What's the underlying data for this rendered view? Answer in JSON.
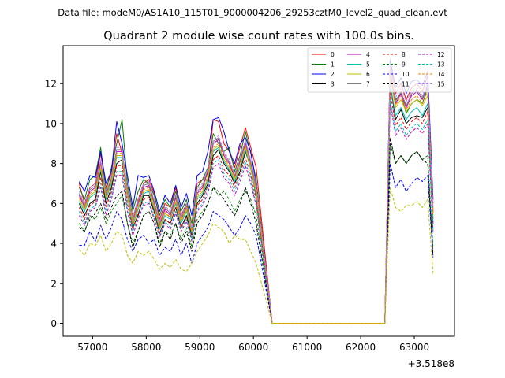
{
  "suptitle": "Data file: modeM0/AS1A10_115T01_9000004206_29253cztM0_level2_quad_clean.evt",
  "chart_data": {
    "type": "line",
    "title": "Quadrant 2 module wise count rates with 100.0s bins.",
    "xlabel": "",
    "ylabel": "",
    "x_offset_label": "+3.518e8",
    "xlim": [
      56450,
      63750
    ],
    "ylim": [
      -0.65,
      13.9
    ],
    "x_ticks": [
      57000,
      58000,
      59000,
      60000,
      61000,
      62000,
      63000
    ],
    "x_tick_labels": [
      "57000",
      "58000",
      "59000",
      "60000",
      "61000",
      "62000",
      "63000"
    ],
    "y_ticks": [
      0,
      2,
      4,
      6,
      8,
      10,
      12
    ],
    "y_tick_labels": [
      "0",
      "2",
      "4",
      "6",
      "8",
      "10",
      "12"
    ],
    "grid": false,
    "legend_position": "top-right",
    "legend_columns": 4,
    "x_segment1_start": 56750,
    "x_segment1_step": 100,
    "gap_x": [
      60350,
      62450
    ],
    "x_segment2": [
      62550,
      62650,
      62750,
      62850,
      62950,
      63050,
      63150,
      63250,
      63350
    ],
    "series": [
      {
        "name": "0",
        "color": "#ff0000",
        "dash": "solid",
        "seg1": [
          7.0,
          6.0,
          6.8,
          7.0,
          8.5,
          6.8,
          7.5,
          9.5,
          8.5,
          6.8,
          5.3,
          6.2,
          7.0,
          7.2,
          6.5,
          5.2,
          6.0,
          5.8,
          6.8,
          5.4,
          6.0,
          5.0,
          7.0,
          7.2,
          7.5,
          10.2,
          10.1,
          9.0,
          8.6,
          7.8,
          8.8,
          9.8,
          8.8,
          7.8
        ],
        "seg2": [
          13.0,
          11.5,
          12.0,
          11.2,
          11.8,
          12.0,
          11.6,
          12.4,
          6.0
        ]
      },
      {
        "name": "1",
        "color": "#008000",
        "dash": "solid",
        "seg1": [
          6.8,
          6.2,
          7.2,
          7.4,
          8.8,
          6.6,
          7.8,
          9.0,
          10.2,
          7.0,
          5.6,
          6.6,
          7.2,
          7.0,
          6.4,
          5.4,
          6.2,
          5.8,
          6.6,
          5.6,
          6.2,
          5.0,
          6.8,
          7.2,
          7.8,
          9.5,
          9.0,
          8.6,
          8.8,
          7.6,
          8.4,
          9.6,
          8.5,
          7.2
        ],
        "seg2": [
          12.4,
          11.2,
          11.5,
          10.5,
          11.0,
          11.2,
          11.0,
          11.8,
          5.5
        ]
      },
      {
        "name": "2",
        "color": "#0000ff",
        "dash": "solid",
        "seg1": [
          7.1,
          6.6,
          7.4,
          7.3,
          8.6,
          7.0,
          7.6,
          10.1,
          9.0,
          7.4,
          5.8,
          7.4,
          7.3,
          7.4,
          6.6,
          5.6,
          6.4,
          6.0,
          6.9,
          5.8,
          6.5,
          5.4,
          7.4,
          7.6,
          8.6,
          10.2,
          10.3,
          9.6,
          8.6,
          8.0,
          9.0,
          9.3,
          8.6,
          7.0
        ],
        "seg2": [
          13.2,
          11.8,
          12.3,
          11.5,
          12.1,
          12.2,
          11.9,
          12.6,
          6.2
        ]
      },
      {
        "name": "3",
        "color": "#000000",
        "dash": "solid",
        "seg1": [
          6.0,
          5.4,
          6.0,
          6.2,
          7.6,
          6.0,
          6.8,
          8.0,
          8.2,
          6.4,
          4.8,
          5.4,
          6.4,
          6.4,
          5.6,
          4.5,
          5.2,
          5.0,
          5.8,
          4.8,
          5.4,
          4.4,
          6.0,
          6.4,
          7.0,
          8.4,
          8.7,
          8.0,
          7.6,
          7.0,
          7.6,
          8.6,
          7.8,
          6.4
        ],
        "seg2": [
          12.0,
          10.2,
          10.7,
          10.0,
          10.3,
          10.4,
          10.3,
          10.8,
          5.0
        ]
      },
      {
        "name": "4",
        "color": "#bf00bf",
        "dash": "solid",
        "seg1": [
          6.4,
          5.8,
          6.6,
          6.8,
          8.0,
          6.4,
          7.2,
          8.6,
          8.6,
          6.6,
          5.1,
          6.0,
          6.8,
          6.9,
          6.0,
          4.9,
          5.7,
          5.4,
          6.3,
          5.2,
          5.8,
          4.6,
          6.5,
          6.8,
          7.6,
          9.0,
          9.2,
          8.4,
          8.0,
          7.3,
          8.1,
          9.0,
          8.0,
          6.8
        ],
        "seg2": [
          12.6,
          11.0,
          11.5,
          10.8,
          11.4,
          11.6,
          11.2,
          11.9,
          5.6
        ]
      },
      {
        "name": "5",
        "color": "#00bfbf",
        "dash": "solid",
        "seg1": [
          6.1,
          5.6,
          6.3,
          6.5,
          7.7,
          6.2,
          7.0,
          8.3,
          8.3,
          6.3,
          4.9,
          5.7,
          6.5,
          6.6,
          5.7,
          4.7,
          5.4,
          5.2,
          6.0,
          5.0,
          5.6,
          4.5,
          6.2,
          6.5,
          7.2,
          8.6,
          8.8,
          8.1,
          7.7,
          7.1,
          7.8,
          8.7,
          7.7,
          6.5
        ],
        "seg2": [
          12.0,
          10.4,
          10.8,
          10.2,
          10.6,
          10.8,
          10.4,
          11.0,
          5.2
        ]
      },
      {
        "name": "6",
        "color": "#bfbf00",
        "dash": "solid",
        "seg1": [
          6.2,
          5.7,
          6.4,
          6.6,
          7.8,
          6.3,
          7.1,
          8.4,
          8.4,
          6.4,
          5.0,
          5.8,
          6.6,
          6.7,
          5.8,
          4.8,
          5.5,
          5.3,
          6.1,
          5.1,
          5.7,
          4.6,
          6.3,
          6.6,
          7.3,
          8.7,
          8.9,
          8.2,
          7.8,
          7.2,
          7.9,
          8.8,
          7.8,
          6.6
        ],
        "seg2": [
          12.3,
          10.8,
          11.2,
          10.6,
          11.0,
          11.2,
          10.9,
          11.4,
          5.4
        ]
      },
      {
        "name": "7",
        "color": "#808080",
        "dash": "solid",
        "seg1": [
          6.5,
          5.9,
          6.7,
          6.9,
          8.1,
          6.5,
          7.3,
          8.7,
          8.7,
          6.7,
          5.2,
          6.1,
          6.9,
          7.0,
          6.1,
          5.0,
          5.8,
          5.5,
          6.4,
          5.3,
          5.9,
          4.7,
          6.6,
          6.9,
          7.7,
          9.1,
          9.3,
          8.5,
          8.1,
          7.4,
          8.2,
          9.1,
          8.1,
          6.9
        ],
        "seg2": [
          12.8,
          11.1,
          11.6,
          10.9,
          11.5,
          11.7,
          11.3,
          12.0,
          5.7
        ]
      },
      {
        "name": "8",
        "color": "#ff0000",
        "dash": "dashed",
        "seg1": [
          5.8,
          5.2,
          5.9,
          6.1,
          7.3,
          5.8,
          6.6,
          7.9,
          7.9,
          6.0,
          4.7,
          5.5,
          6.2,
          6.3,
          5.5,
          4.5,
          5.2,
          5.0,
          5.8,
          4.8,
          5.3,
          4.3,
          5.9,
          6.2,
          6.9,
          8.2,
          8.4,
          7.7,
          7.4,
          6.8,
          7.5,
          8.3,
          7.4,
          6.2
        ],
        "seg2": [
          11.6,
          9.9,
          10.3,
          9.7,
          10.1,
          10.3,
          10.0,
          10.6,
          4.9
        ]
      },
      {
        "name": "9",
        "color": "#008000",
        "dash": "dashed",
        "seg1": [
          5.0,
          4.6,
          5.4,
          5.2,
          5.8,
          5.0,
          5.6,
          6.0,
          6.4,
          5.0,
          4.0,
          4.6,
          5.4,
          5.6,
          5.0,
          4.0,
          4.6,
          4.4,
          5.0,
          4.2,
          4.8,
          3.8,
          5.2,
          5.6,
          6.0,
          6.8,
          6.4,
          6.6,
          6.2,
          5.6,
          6.2,
          6.6,
          6.2,
          5.4
        ],
        "seg2": [
          9.0,
          8.0,
          8.4,
          8.0,
          8.4,
          8.6,
          8.2,
          8.4,
          3.8
        ]
      },
      {
        "name": "10",
        "color": "#0000ff",
        "dash": "dashed",
        "seg1": [
          3.9,
          3.9,
          4.6,
          4.1,
          4.9,
          4.2,
          4.8,
          5.6,
          5.2,
          4.2,
          3.6,
          4.2,
          4.4,
          4.0,
          4.2,
          3.4,
          3.8,
          3.6,
          4.2,
          3.4,
          4.0,
          3.0,
          4.0,
          4.4,
          4.8,
          5.6,
          5.4,
          5.2,
          4.8,
          4.4,
          4.8,
          5.4,
          5.0,
          4.4
        ],
        "seg2": [
          8.0,
          6.8,
          7.2,
          6.6,
          7.0,
          7.3,
          7.1,
          7.4,
          3.3
        ]
      },
      {
        "name": "11",
        "color": "#000000",
        "dash": "dashed",
        "seg1": [
          4.8,
          4.6,
          5.2,
          5.5,
          6.0,
          5.2,
          5.8,
          6.4,
          6.6,
          5.0,
          3.8,
          4.6,
          5.4,
          5.6,
          5.0,
          3.8,
          4.6,
          4.2,
          5.0,
          4.0,
          4.6,
          3.6,
          5.0,
          5.4,
          6.0,
          6.8,
          6.6,
          6.2,
          5.8,
          5.4,
          6.0,
          6.8,
          6.0,
          5.0
        ],
        "seg2": [
          9.3,
          8.0,
          8.4,
          8.0,
          8.4,
          8.6,
          8.2,
          8.0,
          3.4
        ]
      },
      {
        "name": "12",
        "color": "#bf00bf",
        "dash": "dashed",
        "seg1": [
          5.4,
          4.9,
          5.6,
          5.8,
          6.8,
          5.4,
          6.2,
          7.4,
          7.4,
          5.6,
          4.4,
          5.2,
          5.9,
          6.0,
          5.2,
          4.3,
          5.0,
          4.7,
          5.5,
          4.6,
          5.1,
          4.1,
          5.6,
          5.9,
          6.5,
          7.8,
          8.0,
          7.3,
          7.0,
          6.4,
          7.1,
          7.9,
          7.0,
          5.9
        ],
        "seg2": [
          11.0,
          9.4,
          9.8,
          9.2,
          9.6,
          9.8,
          9.5,
          10.0,
          4.6
        ]
      },
      {
        "name": "13",
        "color": "#00bfbf",
        "dash": "dashed",
        "seg1": [
          5.6,
          5.0,
          5.7,
          5.9,
          7.0,
          5.6,
          6.4,
          7.6,
          7.6,
          5.8,
          4.6,
          5.3,
          6.0,
          6.1,
          5.3,
          4.4,
          5.1,
          4.8,
          5.6,
          4.7,
          5.2,
          4.2,
          5.7,
          6.0,
          6.7,
          8.0,
          8.2,
          7.5,
          7.2,
          6.6,
          7.3,
          8.1,
          7.2,
          6.0
        ],
        "seg2": [
          11.2,
          9.6,
          10.0,
          9.4,
          9.8,
          10.0,
          9.7,
          10.2,
          4.7
        ]
      },
      {
        "name": "14",
        "color": "#ff8000",
        "dash": "dashed",
        "seg1": [
          6.3,
          5.8,
          6.5,
          6.7,
          7.9,
          6.4,
          7.2,
          8.5,
          8.5,
          6.5,
          5.1,
          5.9,
          6.7,
          6.8,
          5.9,
          4.9,
          5.6,
          5.3,
          6.2,
          5.2,
          5.8,
          4.6,
          6.4,
          6.7,
          7.4,
          8.8,
          9.0,
          8.3,
          7.9,
          7.3,
          8.0,
          8.9,
          7.9,
          6.7
        ],
        "seg2": [
          12.5,
          10.9,
          11.4,
          10.7,
          11.2,
          11.4,
          11.0,
          11.6,
          5.5
        ]
      },
      {
        "name": "15",
        "color": "#bf80ff",
        "dash": "dashed",
        "seg1": [
          6.6,
          6.0,
          6.8,
          7.0,
          8.2,
          6.6,
          7.4,
          8.8,
          8.8,
          6.8,
          5.3,
          6.2,
          7.0,
          7.1,
          6.2,
          5.1,
          5.9,
          5.6,
          6.5,
          5.4,
          6.0,
          4.8,
          6.7,
          7.0,
          7.8,
          9.2,
          9.4,
          8.6,
          8.2,
          7.5,
          8.3,
          9.2,
          8.2,
          7.0
        ],
        "seg2": [
          12.9,
          11.3,
          11.8,
          11.1,
          11.6,
          11.8,
          11.4,
          12.1,
          5.8
        ]
      },
      {
        "name": "",
        "color": "#bfbf00",
        "dash": "dashed",
        "seg1": [
          3.7,
          3.4,
          4.0,
          3.9,
          4.4,
          3.6,
          4.0,
          4.6,
          4.4,
          3.4,
          3.0,
          3.6,
          3.4,
          3.6,
          3.2,
          2.7,
          3.0,
          2.8,
          3.2,
          2.7,
          2.6,
          3.0,
          3.6,
          4.0,
          4.4,
          5.0,
          4.8,
          4.6,
          4.0,
          4.4,
          4.2,
          4.2,
          3.6,
          3.0
        ],
        "seg2": [
          6.8,
          5.8,
          5.6,
          5.9,
          5.9,
          6.1,
          5.8,
          6.2,
          2.5
        ]
      }
    ]
  }
}
